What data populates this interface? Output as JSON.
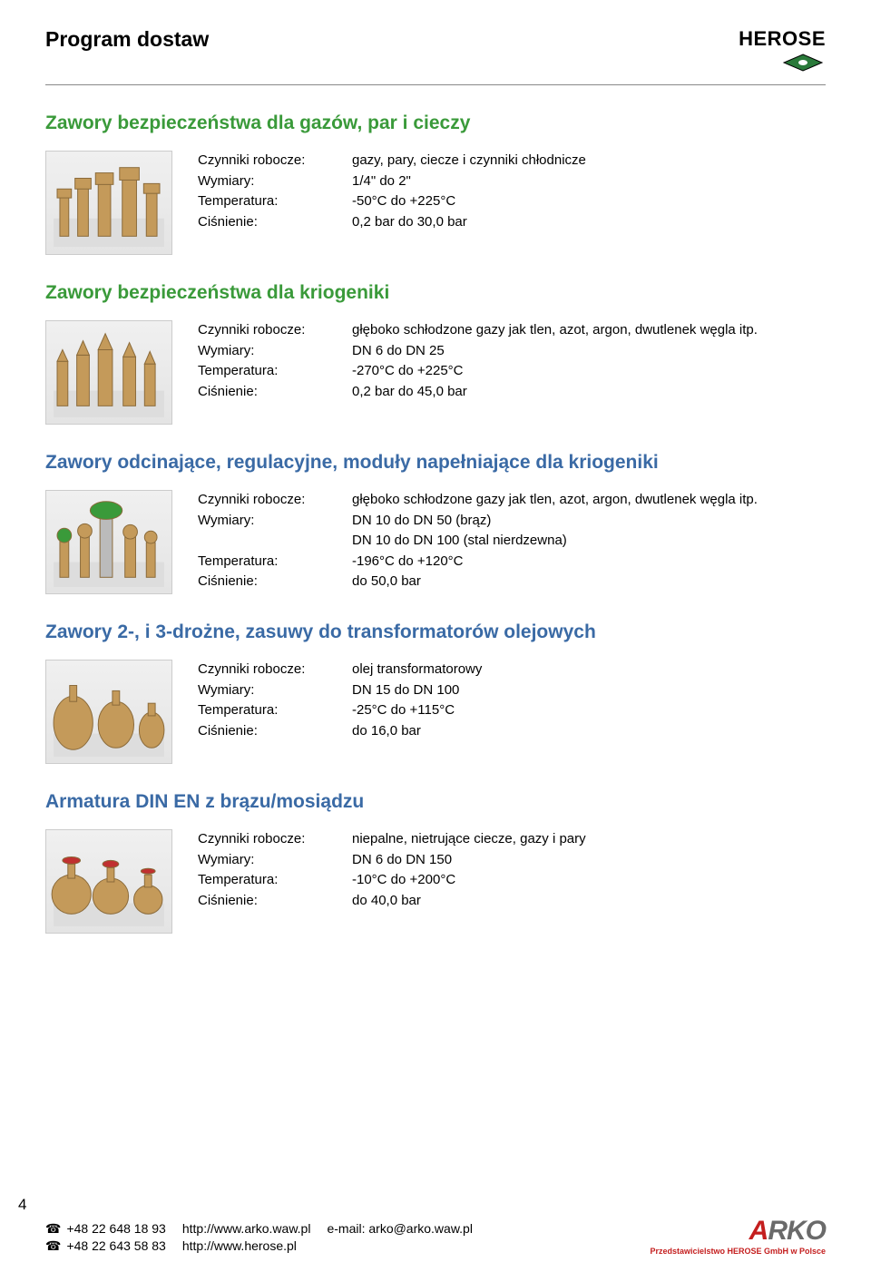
{
  "colors": {
    "heading_green": "#3a9a3a",
    "heading_blue": "#3a6aa5",
    "brass": "#c49a5a",
    "brass_dark": "#8a6a3a",
    "red_handle": "#c03030",
    "herose_green": "#2a7a3a",
    "arko_red": "#c41e1e",
    "arko_gray": "#6a6a6a"
  },
  "page_title": "Program dostaw",
  "logo_text": "HEROSE",
  "page_number": "4",
  "sections": [
    {
      "heading": "Zawory bezpieczeństwa dla gazów, par i cieczy",
      "color_key": "heading_green",
      "specs": [
        {
          "label": "Czynniki robocze:",
          "value": "gazy, pary, ciecze i czynniki chłodnicze"
        },
        {
          "label": "Wymiary:",
          "value": "1/4\" do 2\""
        },
        {
          "label": "Temperatura:",
          "value": "-50°C do +225°C"
        },
        {
          "label": "Ciśnienie:",
          "value": "0,2 bar do 30,0 bar"
        }
      ]
    },
    {
      "heading": "Zawory bezpieczeństwa dla kriogeniki",
      "color_key": "heading_green",
      "specs": [
        {
          "label": "Czynniki robocze:",
          "value": "głęboko schłodzone gazy jak tlen, azot, argon, dwutlenek węgla itp."
        },
        {
          "label": "Wymiary:",
          "value": "DN 6 do DN 25"
        },
        {
          "label": "Temperatura:",
          "value": "-270°C do +225°C"
        },
        {
          "label": "Ciśnienie:",
          "value": "0,2 bar do 45,0 bar"
        }
      ]
    },
    {
      "heading": "Zawory odcinające, regulacyjne, moduły napełniające dla kriogeniki",
      "color_key": "heading_blue",
      "specs": [
        {
          "label": "Czynniki robocze:",
          "value": "głęboko schłodzone gazy jak tlen, azot, argon, dwutlenek węgla itp."
        },
        {
          "label": "Wymiary:",
          "value": "DN 10 do DN 50 (brąz)"
        },
        {
          "label": "",
          "value": "DN 10 do DN 100 (stal nierdzewna)"
        },
        {
          "label": "Temperatura:",
          "value": "-196°C do +120°C"
        },
        {
          "label": "Ciśnienie:",
          "value": "do 50,0 bar"
        }
      ]
    },
    {
      "heading": "Zawory 2-, i 3-drożne, zasuwy do transformatorów olejowych",
      "color_key": "heading_blue",
      "specs": [
        {
          "label": "Czynniki robocze:",
          "value": "olej transformatorowy"
        },
        {
          "label": "Wymiary:",
          "value": "DN 15 do DN 100"
        },
        {
          "label": "Temperatura:",
          "value": "-25°C do +115°C"
        },
        {
          "label": "Ciśnienie:",
          "value": "do 16,0 bar"
        }
      ]
    },
    {
      "heading": "Armatura DIN EN z brązu/mosiądzu",
      "color_key": "heading_blue",
      "specs": [
        {
          "label": "Czynniki robocze:",
          "value": "niepalne, nietrujące ciecze, gazy i pary"
        },
        {
          "label": "Wymiary:",
          "value": "DN 6 do DN 150"
        },
        {
          "label": "Temperatura:",
          "value": "-10°C do +200°C"
        },
        {
          "label": "Ciśnienie:",
          "value": "do 40,0 bar"
        }
      ]
    }
  ],
  "footer": {
    "tel1": "+48 22 648 18 93",
    "tel2": "+48 22 643 58 83",
    "url1": "http://www.arko.waw.pl",
    "url2": "http://www.herose.pl",
    "email": "e-mail: arko@arko.waw.pl",
    "arko_word": "ARKO",
    "arko_sub": "Przedstawicielstwo HEROSE GmbH w Polsce"
  }
}
